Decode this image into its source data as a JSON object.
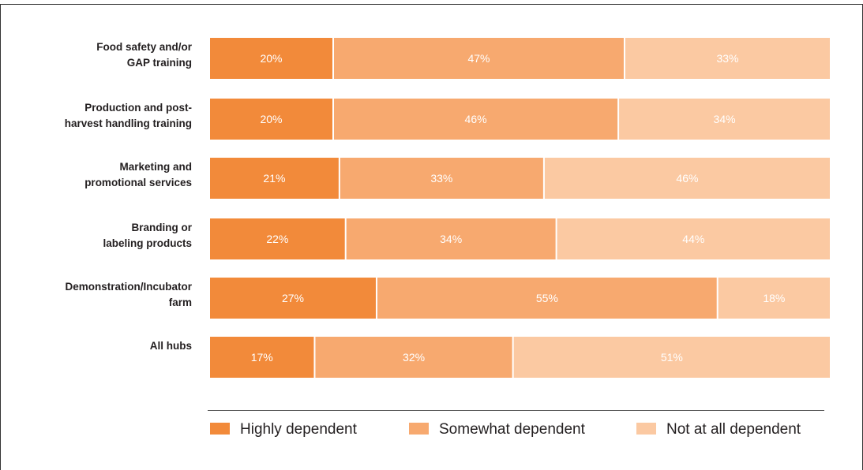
{
  "chart_data": {
    "type": "bar",
    "orientation": "horizontal",
    "stacked": true,
    "unit": "%",
    "categories": [
      [
        "Food safety and/or",
        "GAP training"
      ],
      [
        "Production and post-",
        "harvest handling training"
      ],
      [
        "Marketing and",
        "promotional services"
      ],
      [
        "Branding or",
        "labeling products"
      ],
      [
        "Demonstration/Incubator",
        "farm"
      ],
      [
        "All hubs"
      ]
    ],
    "series": [
      {
        "name": "Highly dependent",
        "color": "#f28a3a",
        "values": [
          20,
          20,
          21,
          22,
          27,
          17
        ]
      },
      {
        "name": "Somewhat dependent",
        "color": "#f7a96f",
        "values": [
          47,
          46,
          33,
          34,
          55,
          32
        ]
      },
      {
        "name": "Not at all dependent",
        "color": "#fbc9a2",
        "values": [
          33,
          34,
          46,
          44,
          18,
          51
        ]
      }
    ],
    "xlim": [
      0,
      100
    ],
    "grid": false,
    "legend_position": "bottom"
  }
}
